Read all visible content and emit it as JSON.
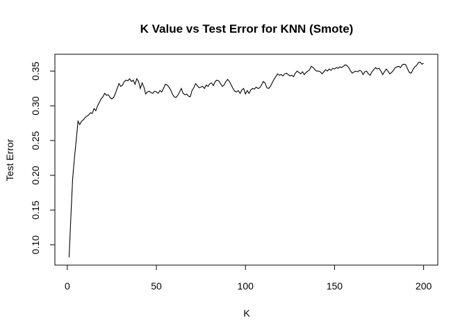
{
  "chart_data": {
    "type": "line",
    "title": "K Value vs Test Error for KNN (Smote)",
    "x_label": "K",
    "y_label": "Test Error",
    "color": "#000000",
    "x": [
      1,
      2,
      3,
      4,
      5,
      6,
      7,
      8,
      9,
      10,
      11,
      12,
      13,
      14,
      15,
      16,
      17,
      18,
      19,
      20,
      21,
      22,
      23,
      24,
      25,
      26,
      27,
      28,
      29,
      30,
      31,
      32,
      33,
      34,
      35,
      36,
      37,
      38,
      39,
      40,
      41,
      42,
      43,
      44,
      45,
      46,
      47,
      48,
      49,
      50,
      51,
      52,
      53,
      54,
      55,
      56,
      57,
      58,
      59,
      60,
      61,
      62,
      63,
      64,
      65,
      66,
      67,
      68,
      69,
      70,
      71,
      72,
      73,
      74,
      75,
      76,
      77,
      78,
      79,
      80,
      81,
      82,
      83,
      84,
      85,
      86,
      87,
      88,
      89,
      90,
      91,
      92,
      93,
      94,
      95,
      96,
      97,
      98,
      99,
      100,
      101,
      102,
      103,
      104,
      105,
      106,
      107,
      108,
      109,
      110,
      111,
      112,
      113,
      114,
      115,
      116,
      117,
      118,
      119,
      120,
      121,
      122,
      123,
      124,
      125,
      126,
      127,
      128,
      129,
      130,
      131,
      132,
      133,
      134,
      135,
      136,
      137,
      138,
      139,
      140,
      141,
      142,
      143,
      144,
      145,
      146,
      147,
      148,
      149,
      150,
      151,
      152,
      153,
      154,
      155,
      156,
      157,
      158,
      159,
      160,
      161,
      162,
      163,
      164,
      165,
      166,
      167,
      168,
      169,
      170,
      171,
      172,
      173,
      174,
      175,
      176,
      177,
      178,
      179,
      180,
      181,
      182,
      183,
      184,
      185,
      186,
      187,
      188,
      189,
      190,
      191,
      192,
      193,
      194,
      195,
      196,
      197,
      198,
      199,
      200
    ],
    "values": [
      0.082,
      0.14,
      0.195,
      0.225,
      0.25,
      0.278,
      0.273,
      0.278,
      0.28,
      0.283,
      0.285,
      0.287,
      0.29,
      0.289,
      0.296,
      0.293,
      0.3,
      0.305,
      0.31,
      0.313,
      0.318,
      0.315,
      0.316,
      0.312,
      0.31,
      0.312,
      0.318,
      0.325,
      0.332,
      0.328,
      0.33,
      0.335,
      0.337,
      0.336,
      0.339,
      0.335,
      0.337,
      0.331,
      0.339,
      0.335,
      0.325,
      0.333,
      0.327,
      0.317,
      0.32,
      0.321,
      0.319,
      0.318,
      0.321,
      0.32,
      0.318,
      0.322,
      0.32,
      0.325,
      0.331,
      0.33,
      0.327,
      0.323,
      0.317,
      0.313,
      0.312,
      0.315,
      0.32,
      0.325,
      0.318,
      0.316,
      0.317,
      0.314,
      0.313,
      0.322,
      0.326,
      0.332,
      0.329,
      0.326,
      0.327,
      0.328,
      0.325,
      0.33,
      0.328,
      0.332,
      0.333,
      0.329,
      0.335,
      0.337,
      0.336,
      0.332,
      0.328,
      0.33,
      0.335,
      0.338,
      0.335,
      0.33,
      0.325,
      0.321,
      0.32,
      0.322,
      0.318,
      0.323,
      0.325,
      0.317,
      0.322,
      0.318,
      0.323,
      0.325,
      0.324,
      0.327,
      0.325,
      0.326,
      0.33,
      0.335,
      0.333,
      0.326,
      0.325,
      0.328,
      0.333,
      0.338,
      0.342,
      0.346,
      0.344,
      0.345,
      0.343,
      0.346,
      0.347,
      0.345,
      0.343,
      0.344,
      0.342,
      0.347,
      0.35,
      0.348,
      0.346,
      0.349,
      0.345,
      0.348,
      0.35,
      0.352,
      0.357,
      0.355,
      0.352,
      0.35,
      0.35,
      0.349,
      0.346,
      0.349,
      0.352,
      0.35,
      0.353,
      0.351,
      0.354,
      0.353,
      0.355,
      0.354,
      0.356,
      0.355,
      0.357,
      0.359,
      0.358,
      0.355,
      0.35,
      0.347,
      0.349,
      0.35,
      0.349,
      0.351,
      0.35,
      0.345,
      0.349,
      0.35,
      0.346,
      0.344,
      0.349,
      0.352,
      0.355,
      0.353,
      0.354,
      0.35,
      0.345,
      0.349,
      0.353,
      0.35,
      0.346,
      0.348,
      0.351,
      0.355,
      0.356,
      0.357,
      0.355,
      0.359,
      0.36,
      0.359,
      0.353,
      0.348,
      0.347,
      0.352,
      0.356,
      0.358,
      0.362,
      0.363,
      0.36,
      0.361
    ],
    "xlim": [
      -6.96,
      207.96
    ],
    "xticks": [
      0,
      50,
      100,
      150,
      200
    ],
    "ylim": [
      0.0708,
      0.3742
    ],
    "yticks": [
      {
        "value": 0.1,
        "label": "0.10"
      },
      0.15,
      {
        "value": 0.2,
        "label": "0.20"
      },
      0.25,
      {
        "value": 0.3,
        "label": "0.30"
      },
      0.35
    ]
  }
}
